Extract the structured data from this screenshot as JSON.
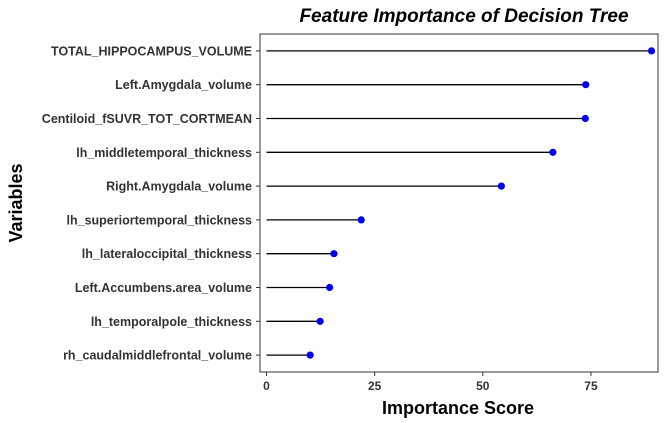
{
  "chart_data": {
    "type": "lollipop",
    "title": "Feature Importance of Decision Tree",
    "xlabel": "Importance Score",
    "ylabel": "Variables",
    "xlim": [
      -1.5,
      90.5
    ],
    "xticks": [
      0,
      25,
      50,
      75
    ],
    "xtick_labels": [
      "0",
      "25",
      "50",
      "75"
    ],
    "grid": false,
    "categories": [
      "TOTAL_HIPPOCAMPUS_VOLUME",
      "Left.Amygdala_volume",
      "Centiloid_fSUVR_TOT_CORTMEAN",
      "lh_middletemporal_thickness",
      "Right.Amygdala_volume",
      "lh_superiortemporal_thickness",
      "lh_lateraloccipital_thickness",
      "Left.Accumbens.area_volume",
      "lh_temporalpole_thickness",
      "rh_caudalmiddlefrontal_volume"
    ],
    "values": [
      89,
      73.8,
      73.7,
      66.2,
      54.3,
      21.9,
      15.6,
      14.6,
      12.4,
      10.1
    ],
    "colors": {
      "point": "#0000ee",
      "stem": "#000000",
      "panel_border": "#333333"
    }
  }
}
